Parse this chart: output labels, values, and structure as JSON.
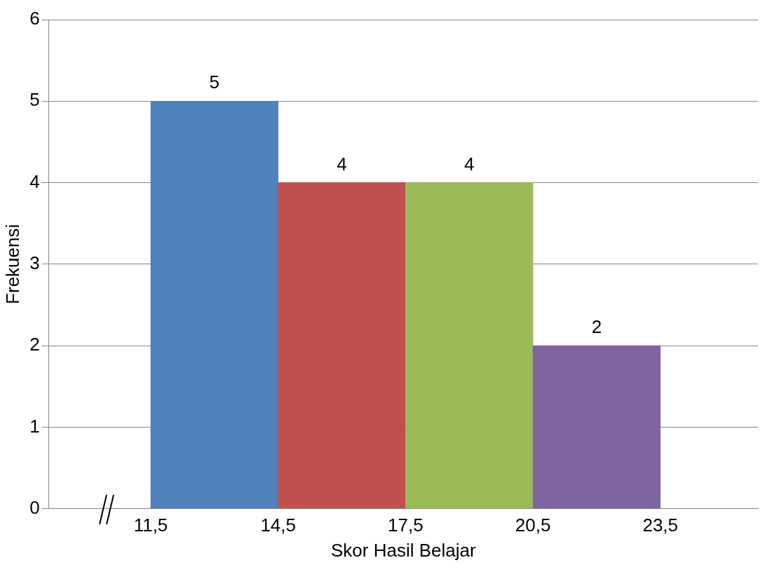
{
  "chart_data": {
    "type": "histogram",
    "xlabel": "Skor Hasil Belajar",
    "ylabel": "Frekuensi",
    "bins": [
      11.5,
      14.5,
      17.5,
      20.5,
      23.5
    ],
    "values": [
      5,
      4,
      4,
      2
    ],
    "colors": [
      "#4f81bd",
      "#c0504d",
      "#9bbb59",
      "#8064a2"
    ],
    "xlim": [
      9.1,
      25.8
    ],
    "xticks": [
      {
        "value": 11.5,
        "label": "11,5"
      },
      {
        "value": 14.5,
        "label": "14,5"
      },
      {
        "value": 17.5,
        "label": "17,5"
      },
      {
        "value": 20.5,
        "label": "20,5"
      },
      {
        "value": 23.5,
        "label": "23,5"
      }
    ],
    "ylim": [
      0,
      6
    ],
    "yticks": [
      0,
      1,
      2,
      3,
      4,
      5,
      6
    ],
    "grid": "y",
    "data_labels": true
  }
}
